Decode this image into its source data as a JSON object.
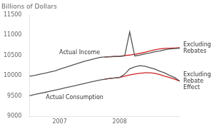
{
  "chart_data": {
    "type": "line",
    "title": "Billions of Dollars",
    "categories": [
      null,
      null,
      null,
      null,
      null,
      null,
      "2007",
      null,
      null,
      null,
      null,
      null,
      null,
      null,
      null,
      null,
      null,
      null,
      "2008",
      null,
      null,
      null,
      null,
      null,
      null,
      null,
      null,
      null,
      null,
      null,
      null
    ],
    "series": [
      {
        "name": "Actual Income",
        "color": "#555555",
        "values": [
          9990,
          10010,
          10040,
          10060,
          10090,
          10120,
          10160,
          10200,
          10240,
          10280,
          10320,
          10360,
          10390,
          10420,
          10450,
          10465,
          10470,
          10475,
          10480,
          10490,
          11080,
          10490,
          10510,
          10540,
          10560,
          10590,
          10610,
          10640,
          10660,
          10670,
          10680
        ]
      },
      {
        "name": "Actual Consumption",
        "color": "#555555",
        "values": [
          9510,
          9540,
          9565,
          9590,
          9618,
          9645,
          9672,
          9700,
          9728,
          9756,
          9785,
          9812,
          9840,
          9868,
          9895,
          9918,
          9935,
          9948,
          9960,
          10040,
          10170,
          10220,
          10250,
          10235,
          10200,
          10165,
          10115,
          10070,
          10010,
          9955,
          9870
        ]
      },
      {
        "name": "Excluding\nRebates",
        "color": "#cc2222",
        "values": [
          null,
          null,
          null,
          null,
          null,
          null,
          null,
          null,
          null,
          null,
          null,
          null,
          null,
          null,
          null,
          10460,
          10470,
          10475,
          10480,
          10500,
          10510,
          10530,
          10550,
          10580,
          10610,
          10640,
          10660,
          10675,
          10680,
          10685,
          10690
        ]
      },
      {
        "name": "Excluding\nRebate\nEffect",
        "color": "#cc2222",
        "values": [
          null,
          null,
          null,
          null,
          null,
          null,
          null,
          null,
          null,
          null,
          null,
          null,
          null,
          null,
          null,
          9918,
          9935,
          9948,
          9960,
          9990,
          10020,
          10045,
          10060,
          10075,
          10075,
          10060,
          10030,
          9990,
          9955,
          9915,
          9870
        ]
      }
    ],
    "ylim": [
      9000,
      11500
    ],
    "yticks": [
      9000,
      9500,
      10000,
      10500,
      11000,
      11500
    ],
    "grid": false
  }
}
